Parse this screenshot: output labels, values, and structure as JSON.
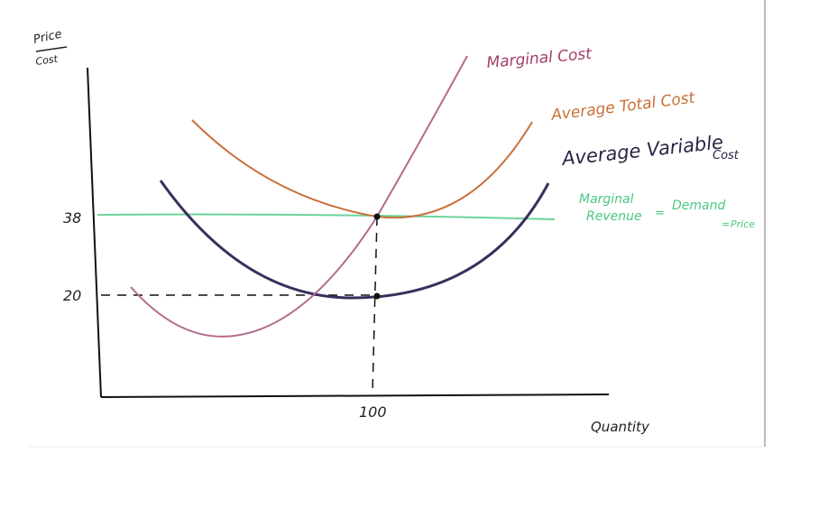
{
  "axes": {
    "y_label": {
      "top": "Price",
      "bottom": "Cost"
    },
    "x_label": "Quantity",
    "y_ticks": [
      "38",
      "20"
    ],
    "x_ticks": [
      "100"
    ]
  },
  "curves": {
    "marginal_cost": "Marginal Cost",
    "average_total_cost": "Average Total Cost",
    "average_variable_cost": {
      "line1": "Average Variable",
      "line2": "Cost"
    },
    "marginal_revenue": {
      "line1": "Marginal",
      "line2": "Revenue",
      "eq1": "=",
      "demand": "Demand",
      "eq2": "=",
      "price": "Price"
    }
  }
}
